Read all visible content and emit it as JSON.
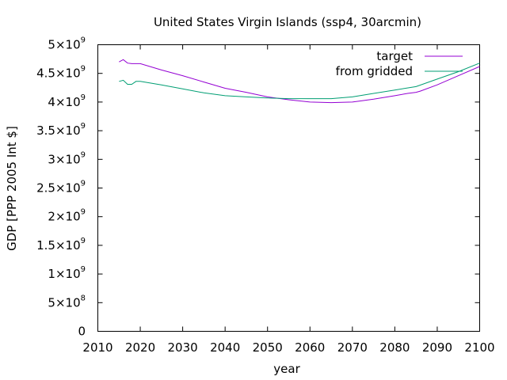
{
  "chart_data": {
    "type": "line",
    "title": "United States Virgin Islands (ssp4, 30arcmin)",
    "xlabel": "year",
    "ylabel": "GDP [PPP 2005 Int $]",
    "xlim": [
      2010,
      2100
    ],
    "ylim": [
      0,
      5000000000
    ],
    "grid": false,
    "legend_position": "top-right",
    "x_ticks": [
      {
        "value": 2010,
        "label": "2010"
      },
      {
        "value": 2020,
        "label": "2020"
      },
      {
        "value": 2030,
        "label": "2030"
      },
      {
        "value": 2040,
        "label": "2040"
      },
      {
        "value": 2050,
        "label": "2050"
      },
      {
        "value": 2060,
        "label": "2060"
      },
      {
        "value": 2070,
        "label": "2070"
      },
      {
        "value": 2080,
        "label": "2080"
      },
      {
        "value": 2090,
        "label": "2090"
      },
      {
        "value": 2100,
        "label": "2100"
      }
    ],
    "y_ticks": [
      {
        "value": 0,
        "mant": "0",
        "exp": ""
      },
      {
        "value": 500000000,
        "mant": "5×10",
        "exp": "8"
      },
      {
        "value": 1000000000,
        "mant": "1×10",
        "exp": "9"
      },
      {
        "value": 1500000000,
        "mant": "1.5×10",
        "exp": "9"
      },
      {
        "value": 2000000000,
        "mant": "2×10",
        "exp": "9"
      },
      {
        "value": 2500000000,
        "mant": "2.5×10",
        "exp": "9"
      },
      {
        "value": 3000000000,
        "mant": "3×10",
        "exp": "9"
      },
      {
        "value": 3500000000,
        "mant": "3.5×10",
        "exp": "9"
      },
      {
        "value": 4000000000,
        "mant": "4×10",
        "exp": "9"
      },
      {
        "value": 4500000000,
        "mant": "4.5×10",
        "exp": "9"
      },
      {
        "value": 5000000000,
        "mant": "5×10",
        "exp": "9"
      }
    ],
    "series": [
      {
        "name": "target",
        "color": "#9400d3",
        "x": [
          2015,
          2016,
          2017,
          2018,
          2019,
          2020,
          2025,
          2030,
          2035,
          2040,
          2045,
          2050,
          2055,
          2060,
          2065,
          2070,
          2075,
          2080,
          2083,
          2085,
          2086,
          2090,
          2095,
          2100
        ],
        "y": [
          4700000000,
          4740000000,
          4680000000,
          4670000000,
          4670000000,
          4670000000,
          4560000000,
          4460000000,
          4350000000,
          4240000000,
          4170000000,
          4090000000,
          4040000000,
          4000000000,
          3990000000,
          4000000000,
          4050000000,
          4110000000,
          4150000000,
          4170000000,
          4190000000,
          4300000000,
          4460000000,
          4620000000
        ]
      },
      {
        "name": "from gridded",
        "color": "#009e73",
        "x": [
          2015,
          2016,
          2017,
          2018,
          2019,
          2020,
          2025,
          2030,
          2035,
          2040,
          2045,
          2050,
          2055,
          2060,
          2065,
          2070,
          2075,
          2080,
          2085,
          2090,
          2095,
          2100
        ],
        "y": [
          4360000000,
          4380000000,
          4310000000,
          4310000000,
          4360000000,
          4360000000,
          4300000000,
          4230000000,
          4160000000,
          4110000000,
          4090000000,
          4070000000,
          4060000000,
          4060000000,
          4060000000,
          4090000000,
          4150000000,
          4210000000,
          4270000000,
          4400000000,
          4530000000,
          4680000000
        ]
      }
    ]
  }
}
